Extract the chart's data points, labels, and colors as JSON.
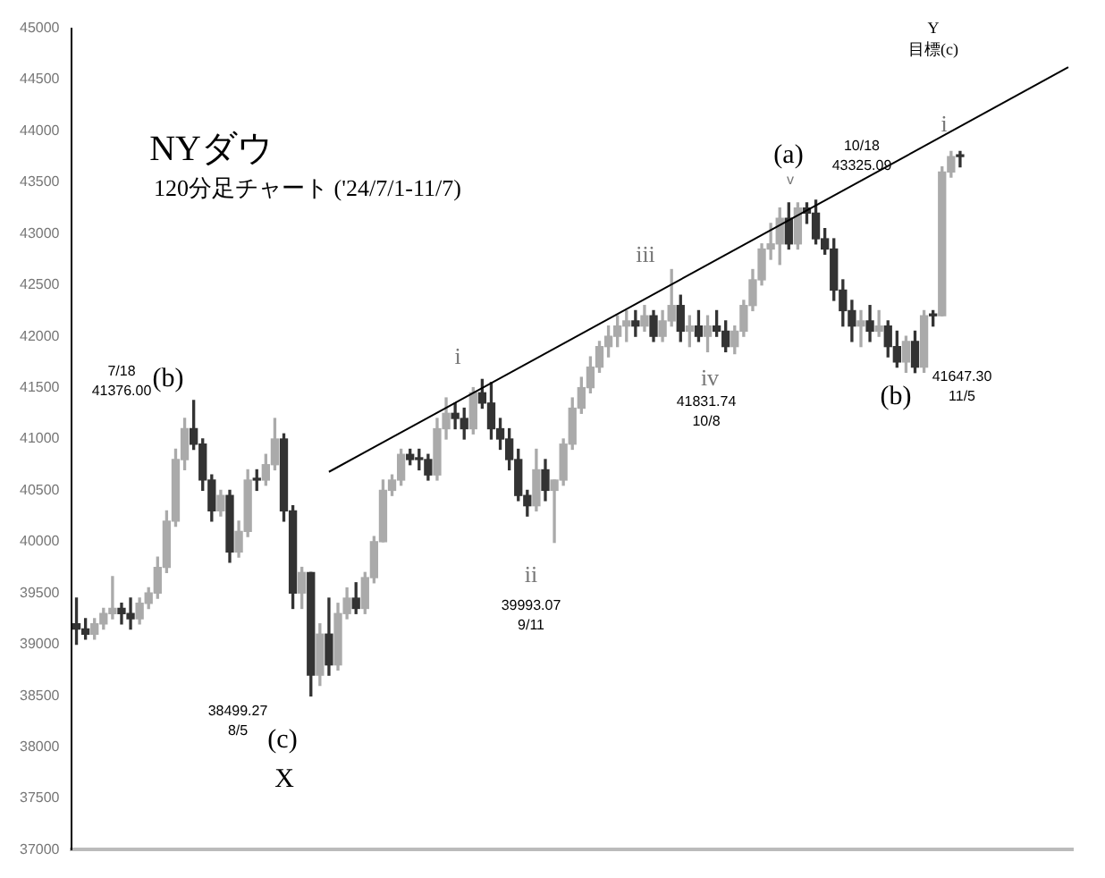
{
  "chart_data": {
    "type": "candlestick",
    "title": "NYダウ",
    "subtitle": "120分足チャート ('24/7/1-11/7)",
    "categories": [
      null,
      null,
      null,
      null,
      null,
      null,
      null,
      null,
      null,
      null,
      null,
      null,
      null,
      null,
      null,
      null,
      null,
      null,
      null,
      null,
      null,
      null,
      null,
      null,
      null,
      null,
      null,
      null,
      null,
      null,
      null,
      null,
      null,
      null,
      null,
      null,
      null,
      null,
      null,
      null,
      null,
      null,
      null,
      null,
      null,
      null,
      null,
      null,
      null,
      null,
      null,
      null,
      null,
      null,
      null,
      null,
      null,
      null,
      null,
      null,
      null,
      null,
      null,
      null,
      null,
      null,
      null,
      null,
      null,
      null,
      null,
      null,
      null,
      null,
      null,
      null,
      null,
      null,
      null,
      null,
      null,
      null,
      null,
      null,
      null,
      null,
      null,
      null,
      null,
      null,
      null,
      null,
      null,
      null,
      null,
      null,
      null,
      null,
      null,
      null,
      null,
      null,
      null,
      null,
      null,
      null,
      null,
      null,
      null,
      null,
      null
    ],
    "ohlc": [
      [
        39200,
        39450,
        39000,
        39150
      ],
      [
        39150,
        39250,
        39050,
        39100
      ],
      [
        39100,
        39250,
        39050,
        39200
      ],
      [
        39200,
        39350,
        39150,
        39300
      ],
      [
        39300,
        39660,
        39250,
        39350
      ],
      [
        39350,
        39400,
        39200,
        39300
      ],
      [
        39300,
        39450,
        39150,
        39250
      ],
      [
        39250,
        39450,
        39200,
        39400
      ],
      [
        39400,
        39550,
        39350,
        39500
      ],
      [
        39500,
        39850,
        39450,
        39750
      ],
      [
        39750,
        40300,
        39700,
        40200
      ],
      [
        40200,
        40900,
        40150,
        40800
      ],
      [
        40800,
        41200,
        40700,
        41100
      ],
      [
        41100,
        41376,
        40900,
        40950
      ],
      [
        40950,
        41000,
        40500,
        40600
      ],
      [
        40600,
        40650,
        40200,
        40300
      ],
      [
        40300,
        40500,
        40250,
        40450
      ],
      [
        40450,
        40500,
        39800,
        39900
      ],
      [
        39900,
        40200,
        39850,
        40100
      ],
      [
        40100,
        40700,
        40050,
        40600
      ],
      [
        40600,
        40700,
        40500,
        40600
      ],
      [
        40600,
        40850,
        40550,
        40750
      ],
      [
        40750,
        41200,
        40700,
        41000
      ],
      [
        41000,
        41050,
        40200,
        40300
      ],
      [
        40300,
        40350,
        39350,
        39500
      ],
      [
        39500,
        39750,
        39350,
        39700
      ],
      [
        39700,
        39700,
        38499,
        38700
      ],
      [
        38700,
        39200,
        38600,
        39100
      ],
      [
        39100,
        39450,
        38700,
        38800
      ],
      [
        38800,
        39400,
        38750,
        39300
      ],
      [
        39300,
        39550,
        39250,
        39450
      ],
      [
        39450,
        39600,
        39300,
        39350
      ],
      [
        39350,
        39700,
        39300,
        39650
      ],
      [
        39650,
        40050,
        39600,
        40000
      ],
      [
        40000,
        40600,
        40000,
        40500
      ],
      [
        40500,
        40650,
        40450,
        40600
      ],
      [
        40600,
        40900,
        40550,
        40850
      ],
      [
        40850,
        40900,
        40750,
        40800
      ],
      [
        40800,
        40900,
        40700,
        40800
      ],
      [
        40800,
        40850,
        40600,
        40650
      ],
      [
        40650,
        41200,
        40600,
        41100
      ],
      [
        41100,
        41400,
        41000,
        41250
      ],
      [
        41250,
        41350,
        41100,
        41200
      ],
      [
        41200,
        41300,
        41000,
        41100
      ],
      [
        41100,
        41500,
        41050,
        41450
      ],
      [
        41450,
        41580,
        41300,
        41350
      ],
      [
        41350,
        41550,
        41000,
        41100
      ],
      [
        41100,
        41200,
        40900,
        41000
      ],
      [
        41000,
        41100,
        40700,
        40800
      ],
      [
        40800,
        40900,
        40400,
        40450
      ],
      [
        40450,
        40500,
        40250,
        40350
      ],
      [
        40350,
        40900,
        40300,
        40700
      ],
      [
        40700,
        40800,
        40400,
        40500
      ],
      [
        40500,
        40600,
        39993,
        40600
      ],
      [
        40600,
        41000,
        40550,
        40950
      ],
      [
        40950,
        41400,
        40900,
        41300
      ],
      [
        41300,
        41600,
        41250,
        41500
      ],
      [
        41500,
        41800,
        41450,
        41700
      ],
      [
        41700,
        41950,
        41650,
        41900
      ],
      [
        41900,
        42100,
        41800,
        42000
      ],
      [
        42000,
        42200,
        41900,
        42100
      ],
      [
        42100,
        42250,
        41950,
        42150
      ],
      [
        42150,
        42250,
        42000,
        42100
      ],
      [
        42100,
        42300,
        42050,
        42200
      ],
      [
        42200,
        42250,
        41950,
        42000
      ],
      [
        42000,
        42250,
        41950,
        42150
      ],
      [
        42150,
        42650,
        42100,
        42300
      ],
      [
        42300,
        42400,
        41950,
        42050
      ],
      [
        42050,
        42200,
        41900,
        42100
      ],
      [
        42100,
        42250,
        41950,
        42000
      ],
      [
        42000,
        42200,
        41850,
        42100
      ],
      [
        42100,
        42250,
        42000,
        42050
      ],
      [
        42050,
        42150,
        41850,
        41900
      ],
      [
        41900,
        42100,
        41831,
        42050
      ],
      [
        42050,
        42350,
        42000,
        42300
      ],
      [
        42300,
        42650,
        42250,
        42550
      ],
      [
        42550,
        42900,
        42500,
        42850
      ],
      [
        42850,
        43100,
        42750,
        42900
      ],
      [
        42900,
        43250,
        42700,
        43150
      ],
      [
        43150,
        43300,
        42850,
        42900
      ],
      [
        42900,
        43300,
        42850,
        43250
      ],
      [
        43250,
        43300,
        43100,
        43200
      ],
      [
        43200,
        43325,
        42900,
        42950
      ],
      [
        42950,
        43050,
        42800,
        42850
      ],
      [
        42850,
        42950,
        42350,
        42450
      ],
      [
        42450,
        42550,
        42100,
        42250
      ],
      [
        42250,
        42350,
        41950,
        42100
      ],
      [
        42100,
        42250,
        41900,
        42150
      ],
      [
        42150,
        42300,
        41950,
        42050
      ],
      [
        42050,
        42250,
        42000,
        42100
      ],
      [
        42100,
        42150,
        41800,
        41900
      ],
      [
        41900,
        42050,
        41700,
        41750
      ],
      [
        41750,
        42000,
        41650,
        41950
      ],
      [
        41950,
        42050,
        41647,
        41700
      ],
      [
        41700,
        42250,
        41650,
        42200
      ],
      [
        42200,
        42250,
        42100,
        42200
      ],
      [
        42200,
        43650,
        42200,
        43600
      ],
      [
        43600,
        43800,
        43550,
        43750
      ],
      [
        43750,
        43800,
        43650,
        43750
      ],
      null,
      null,
      null,
      null,
      null,
      null,
      null,
      null,
      null,
      null,
      null,
      null
    ],
    "colors": [
      "#333333",
      "#333333",
      "#aaaaaa",
      "#aaaaaa",
      "#aaaaaa",
      "#333333",
      "#333333",
      "#aaaaaa",
      "#aaaaaa",
      "#aaaaaa",
      "#aaaaaa",
      "#aaaaaa",
      "#aaaaaa",
      "#333333",
      "#333333",
      "#333333",
      "#aaaaaa",
      "#333333",
      "#aaaaaa",
      "#aaaaaa",
      "#333333",
      "#aaaaaa",
      "#aaaaaa",
      "#333333",
      "#333333",
      "#aaaaaa",
      "#333333",
      "#aaaaaa",
      "#333333",
      "#aaaaaa",
      "#aaaaaa",
      "#333333",
      "#aaaaaa",
      "#aaaaaa",
      "#aaaaaa",
      "#aaaaaa",
      "#aaaaaa",
      "#333333",
      "#333333",
      "#333333",
      "#aaaaaa",
      "#aaaaaa",
      "#333333",
      "#333333",
      "#aaaaaa",
      "#333333",
      "#333333",
      "#333333",
      "#333333",
      "#333333",
      "#333333",
      "#aaaaaa",
      "#333333",
      "#aaaaaa",
      "#aaaaaa",
      "#aaaaaa",
      "#aaaaaa",
      "#aaaaaa",
      "#aaaaaa",
      "#aaaaaa",
      "#aaaaaa",
      "#aaaaaa",
      "#333333",
      "#aaaaaa",
      "#333333",
      "#aaaaaa",
      "#aaaaaa",
      "#333333",
      "#aaaaaa",
      "#333333",
      "#aaaaaa",
      "#333333",
      "#333333",
      "#aaaaaa",
      "#aaaaaa",
      "#aaaaaa",
      "#aaaaaa",
      "#aaaaaa",
      "#aaaaaa",
      "#333333",
      "#aaaaaa",
      "#333333",
      "#333333",
      "#333333",
      "#333333",
      "#333333",
      "#333333",
      "#aaaaaa",
      "#333333",
      "#aaaaaa",
      "#333333",
      "#333333",
      "#aaaaaa",
      "#333333",
      "#aaaaaa",
      "#333333",
      "#aaaaaa",
      "#aaaaaa",
      "#333333",
      null,
      null,
      null,
      null,
      null,
      null,
      null,
      null,
      null,
      null,
      null,
      null
    ],
    "series": [
      {
        "type": "line",
        "color": "#000000",
        "values": [
          null,
          null,
          null,
          null,
          null,
          null,
          null,
          null,
          null,
          null,
          null,
          null,
          null,
          null,
          null,
          null,
          null,
          null,
          null,
          null,
          null,
          null,
          null,
          null,
          null,
          null,
          null,
          null,
          40680,
          null,
          null,
          null,
          null,
          null,
          null,
          null,
          null,
          null,
          null,
          null,
          null,
          null,
          null,
          null,
          null,
          null,
          null,
          null,
          null,
          null,
          null,
          null,
          null,
          null,
          null,
          null,
          null,
          null,
          null,
          null,
          null,
          null,
          null,
          null,
          null,
          null,
          null,
          null,
          null,
          null,
          null,
          null,
          null,
          null,
          null,
          null,
          null,
          null,
          null,
          null,
          null,
          null,
          null,
          null,
          null,
          null,
          null,
          null,
          null,
          null,
          null,
          null,
          null,
          null,
          null,
          null,
          null,
          null,
          null,
          null,
          null,
          null,
          null,
          null,
          null,
          null,
          null,
          null,
          null,
          null,
          44620
        ]
      }
    ],
    "ylim": [
      37000,
      45000
    ],
    "yticks": [
      37000,
      37500,
      38000,
      38500,
      39000,
      39500,
      40000,
      40500,
      41000,
      41500,
      42000,
      42500,
      43000,
      43500,
      44000,
      44500,
      45000
    ],
    "tick_labels": "y",
    "grid": false,
    "legend": false,
    "annotations": [
      "7/18\n41376.00",
      "(b)",
      "38499.27\n8/5",
      "(c)",
      "X",
      "i",
      "ii",
      "39993.07\n9/11",
      "iii",
      "iv",
      "41831.74\n10/8",
      "(a)",
      "v",
      "10/18\n43325.09",
      "(b)",
      "41647.30\n11/5",
      "i",
      "Y\n目標(c)"
    ]
  }
}
